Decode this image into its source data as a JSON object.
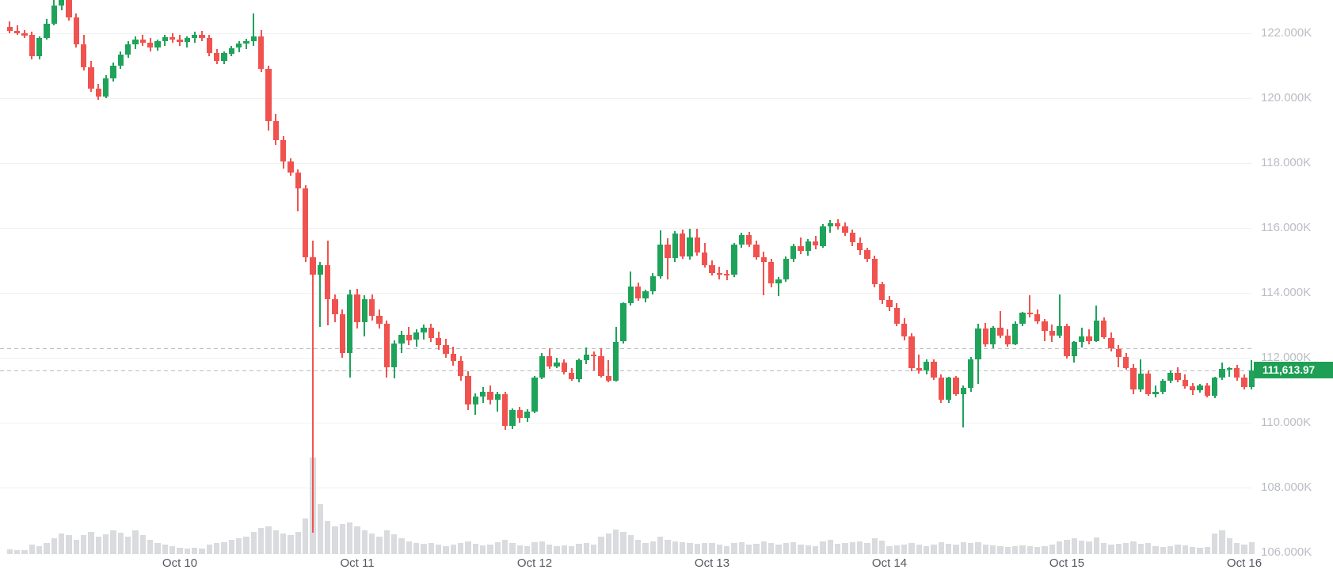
{
  "chart": {
    "price_label": "111,613.97",
    "current_price": 111613.97,
    "colors": {
      "up": "#1fa35b",
      "down": "#f0534f",
      "volume": "#d9dbde",
      "grid": "#f0f1f2",
      "dashed": "#b8bbc2",
      "y_axis_text": "#babdc4",
      "x_axis_text": "#55585f",
      "price_label_bg": "#1f9e55",
      "price_label_text": "#ffffff",
      "background": "#ffffff"
    },
    "y_axis": {
      "tick_labels": [
        "122.000K",
        "120.000K",
        "118.000K",
        "116.000K",
        "114.000K",
        "112.000K",
        "110.000K",
        "108.000K",
        "106.000K"
      ],
      "tick_values": [
        122000,
        120000,
        118000,
        116000,
        114000,
        112000,
        110000,
        108000,
        106000
      ]
    },
    "x_axis": {
      "tick_labels": [
        "Oct 10",
        "Oct 11",
        "Oct 12",
        "Oct 13",
        "Oct 14",
        "Oct 15",
        "Oct 16"
      ]
    },
    "dashed_line_prices": [
      112290,
      111613.97
    ]
  },
  "chart_data": {
    "type": "candlestick_with_volume",
    "unit": "USD thousands",
    "interval": "1 hour",
    "start": "Oct 9 01:00",
    "x_tick_labels": [
      "Oct 10",
      "Oct 11",
      "Oct 12",
      "Oct 13",
      "Oct 14",
      "Oct 15",
      "Oct 16"
    ],
    "y_range_visible": [
      105.5,
      123.0
    ],
    "grid": "horizontal-only",
    "legend": "none",
    "last_price": 111.61397,
    "candles_ohlc": [
      [
        122.2,
        122.36,
        122.0,
        122.08
      ],
      [
        122.08,
        122.25,
        121.95,
        122.0
      ],
      [
        122.0,
        122.1,
        121.85,
        121.92
      ],
      [
        121.95,
        122.05,
        121.2,
        121.3
      ],
      [
        121.3,
        121.9,
        121.2,
        121.85
      ],
      [
        121.85,
        122.45,
        121.8,
        122.3
      ],
      [
        122.3,
        123.05,
        122.25,
        122.85
      ],
      [
        122.85,
        123.4,
        122.7,
        123.25
      ],
      [
        123.25,
        123.45,
        122.4,
        122.5
      ],
      [
        122.5,
        122.6,
        121.55,
        121.65
      ],
      [
        121.65,
        121.95,
        120.85,
        120.95
      ],
      [
        120.95,
        121.15,
        120.2,
        120.3
      ],
      [
        120.3,
        120.45,
        119.95,
        120.05
      ],
      [
        120.05,
        120.7,
        120.0,
        120.6
      ],
      [
        120.6,
        121.1,
        120.5,
        121.0
      ],
      [
        121.0,
        121.45,
        120.9,
        121.35
      ],
      [
        121.35,
        121.75,
        121.25,
        121.65
      ],
      [
        121.65,
        121.9,
        121.5,
        121.8
      ],
      [
        121.8,
        121.95,
        121.6,
        121.7
      ],
      [
        121.7,
        121.85,
        121.45,
        121.55
      ],
      [
        121.55,
        121.8,
        121.45,
        121.75
      ],
      [
        121.75,
        121.95,
        121.6,
        121.88
      ],
      [
        121.88,
        122.0,
        121.7,
        121.8
      ],
      [
        121.8,
        121.95,
        121.6,
        121.72
      ],
      [
        121.72,
        121.9,
        121.55,
        121.85
      ],
      [
        121.85,
        122.05,
        121.7,
        121.95
      ],
      [
        121.95,
        122.08,
        121.75,
        121.85
      ],
      [
        121.85,
        121.95,
        121.3,
        121.4
      ],
      [
        121.4,
        121.52,
        121.05,
        121.15
      ],
      [
        121.15,
        121.45,
        121.05,
        121.38
      ],
      [
        121.38,
        121.62,
        121.28,
        121.55
      ],
      [
        121.55,
        121.75,
        121.42,
        121.68
      ],
      [
        121.68,
        121.82,
        121.52,
        121.75
      ],
      [
        121.75,
        122.6,
        121.6,
        121.9
      ],
      [
        121.9,
        122.1,
        120.8,
        120.9
      ],
      [
        120.9,
        121.0,
        119.0,
        119.3
      ],
      [
        119.3,
        119.52,
        118.55,
        118.7
      ],
      [
        118.7,
        118.82,
        117.82,
        118.05
      ],
      [
        118.05,
        118.15,
        117.6,
        117.72
      ],
      [
        117.72,
        117.8,
        116.5,
        117.22
      ],
      [
        117.22,
        117.32,
        114.95,
        115.1
      ],
      [
        115.1,
        115.62,
        106.6,
        114.55
      ],
      [
        114.55,
        114.95,
        112.95,
        114.85
      ],
      [
        114.85,
        115.62,
        113.0,
        113.8
      ],
      [
        113.8,
        113.95,
        113.1,
        113.35
      ],
      [
        113.35,
        113.5,
        112.0,
        112.15
      ],
      [
        112.15,
        114.1,
        111.4,
        113.95
      ],
      [
        113.95,
        114.12,
        112.9,
        113.1
      ],
      [
        113.1,
        113.92,
        112.65,
        113.8
      ],
      [
        113.8,
        113.95,
        113.15,
        113.3
      ],
      [
        113.3,
        113.48,
        112.9,
        113.05
      ],
      [
        113.05,
        113.15,
        111.4,
        111.7
      ],
      [
        111.7,
        112.55,
        111.38,
        112.45
      ],
      [
        112.45,
        112.82,
        112.15,
        112.72
      ],
      [
        112.72,
        112.95,
        112.4,
        112.55
      ],
      [
        112.55,
        112.88,
        112.35,
        112.78
      ],
      [
        112.78,
        113.02,
        112.55,
        112.92
      ],
      [
        112.92,
        113.05,
        112.5,
        112.62
      ],
      [
        112.62,
        112.8,
        112.25,
        112.4
      ],
      [
        112.4,
        112.58,
        112.0,
        112.12
      ],
      [
        112.12,
        112.35,
        111.75,
        111.9
      ],
      [
        111.9,
        112.05,
        111.3,
        111.45
      ],
      [
        111.45,
        111.58,
        110.4,
        110.55
      ],
      [
        110.55,
        110.9,
        110.25,
        110.8
      ],
      [
        110.8,
        111.1,
        110.6,
        110.95
      ],
      [
        110.95,
        111.15,
        110.55,
        110.7
      ],
      [
        110.7,
        110.95,
        110.35,
        110.88
      ],
      [
        110.88,
        110.95,
        109.78,
        109.9
      ],
      [
        109.9,
        110.45,
        109.8,
        110.38
      ],
      [
        110.38,
        110.5,
        110.0,
        110.15
      ],
      [
        110.15,
        110.42,
        110.02,
        110.35
      ],
      [
        110.35,
        111.45,
        110.3,
        111.4
      ],
      [
        111.4,
        112.15,
        111.35,
        112.06
      ],
      [
        112.06,
        112.3,
        111.65,
        111.72
      ],
      [
        111.72,
        112.0,
        111.68,
        111.85
      ],
      [
        111.85,
        111.95,
        111.48,
        111.55
      ],
      [
        111.55,
        111.68,
        111.28,
        111.35
      ],
      [
        111.35,
        111.98,
        111.25,
        111.92
      ],
      [
        111.92,
        112.32,
        111.8,
        112.1
      ],
      [
        112.1,
        112.2,
        111.6,
        112.05
      ],
      [
        112.05,
        112.3,
        111.38,
        111.45
      ],
      [
        111.45,
        111.92,
        111.25,
        111.3
      ],
      [
        111.3,
        112.95,
        111.28,
        112.5
      ],
      [
        112.5,
        113.72,
        112.45,
        113.68
      ],
      [
        113.68,
        114.65,
        113.6,
        114.2
      ],
      [
        114.2,
        114.32,
        113.75,
        113.82
      ],
      [
        113.82,
        114.1,
        113.7,
        114.05
      ],
      [
        114.05,
        114.6,
        113.95,
        114.52
      ],
      [
        114.52,
        115.92,
        114.45,
        115.5
      ],
      [
        115.5,
        115.68,
        114.42,
        115.08
      ],
      [
        115.08,
        115.9,
        114.95,
        115.82
      ],
      [
        115.82,
        115.95,
        115.05,
        115.12
      ],
      [
        115.12,
        115.98,
        115.02,
        115.7
      ],
      [
        115.7,
        115.98,
        115.15,
        115.25
      ],
      [
        115.25,
        115.55,
        114.78,
        114.85
      ],
      [
        114.85,
        115.0,
        114.55,
        114.62
      ],
      [
        114.62,
        114.8,
        114.42,
        114.58
      ],
      [
        114.58,
        114.72,
        114.38,
        114.55
      ],
      [
        114.55,
        115.55,
        114.48,
        115.48
      ],
      [
        115.48,
        115.85,
        115.4,
        115.78
      ],
      [
        115.78,
        115.88,
        115.42,
        115.5
      ],
      [
        115.5,
        115.6,
        115.02,
        115.1
      ],
      [
        115.1,
        115.28,
        113.92,
        114.95
      ],
      [
        114.95,
        115.05,
        114.18,
        114.3
      ],
      [
        114.3,
        114.48,
        113.9,
        114.42
      ],
      [
        114.42,
        115.12,
        114.35,
        115.05
      ],
      [
        115.05,
        115.52,
        114.95,
        115.45
      ],
      [
        115.45,
        115.72,
        115.2,
        115.3
      ],
      [
        115.3,
        115.65,
        115.15,
        115.58
      ],
      [
        115.58,
        115.75,
        115.35,
        115.45
      ],
      [
        115.45,
        116.12,
        115.4,
        116.05
      ],
      [
        116.05,
        116.25,
        115.85,
        116.15
      ],
      [
        116.15,
        116.28,
        115.95,
        116.05
      ],
      [
        116.05,
        116.18,
        115.75,
        115.85
      ],
      [
        115.85,
        115.95,
        115.45,
        115.55
      ],
      [
        115.55,
        115.7,
        115.18,
        115.32
      ],
      [
        115.32,
        115.4,
        114.95,
        115.05
      ],
      [
        115.05,
        115.15,
        114.18,
        114.28
      ],
      [
        114.28,
        114.35,
        113.65,
        113.78
      ],
      [
        113.78,
        113.9,
        113.45,
        113.55
      ],
      [
        113.55,
        113.68,
        112.98,
        113.05
      ],
      [
        113.05,
        113.22,
        112.55,
        112.65
      ],
      [
        112.65,
        112.75,
        111.58,
        111.68
      ],
      [
        111.68,
        112.1,
        111.52,
        111.62
      ],
      [
        111.62,
        111.95,
        111.5,
        111.88
      ],
      [
        111.88,
        111.95,
        111.32,
        111.4
      ],
      [
        111.4,
        111.48,
        110.62,
        110.7
      ],
      [
        110.7,
        111.42,
        110.6,
        111.38
      ],
      [
        111.38,
        111.45,
        110.82,
        110.88
      ],
      [
        110.88,
        111.15,
        109.85,
        111.08
      ],
      [
        111.08,
        112.02,
        110.95,
        111.95
      ],
      [
        111.95,
        113.05,
        111.2,
        112.9
      ],
      [
        112.9,
        113.08,
        112.35,
        112.42
      ],
      [
        112.42,
        112.98,
        112.3,
        112.92
      ],
      [
        112.92,
        113.45,
        112.6,
        112.68
      ],
      [
        112.68,
        112.88,
        112.35,
        112.42
      ],
      [
        112.42,
        113.12,
        112.38,
        113.05
      ],
      [
        113.05,
        113.42,
        112.98,
        113.38
      ],
      [
        113.38,
        113.92,
        113.25,
        113.35
      ],
      [
        113.35,
        113.48,
        113.05,
        113.12
      ],
      [
        113.12,
        113.2,
        112.52,
        112.82
      ],
      [
        112.82,
        113.02,
        112.48,
        112.68
      ],
      [
        112.68,
        113.95,
        112.62,
        112.98
      ],
      [
        112.98,
        113.05,
        111.98,
        112.05
      ],
      [
        112.05,
        112.52,
        111.85,
        112.48
      ],
      [
        112.48,
        112.92,
        112.32,
        112.65
      ],
      [
        112.65,
        112.88,
        112.42,
        112.52
      ],
      [
        112.52,
        113.62,
        112.48,
        113.15
      ],
      [
        113.15,
        113.25,
        112.58,
        112.62
      ],
      [
        112.62,
        112.78,
        112.2,
        112.28
      ],
      [
        112.28,
        112.4,
        111.7,
        112.02
      ],
      [
        112.02,
        112.15,
        111.62,
        111.68
      ],
      [
        111.68,
        111.8,
        110.88,
        111.02
      ],
      [
        111.02,
        111.95,
        110.95,
        111.52
      ],
      [
        111.52,
        111.6,
        110.82,
        110.88
      ],
      [
        110.88,
        111.15,
        110.78,
        110.95
      ],
      [
        110.95,
        111.35,
        110.88,
        111.3
      ],
      [
        111.3,
        111.6,
        111.22,
        111.55
      ],
      [
        111.55,
        111.72,
        111.25,
        111.32
      ],
      [
        111.32,
        111.48,
        111.05,
        111.12
      ],
      [
        111.12,
        111.22,
        110.85,
        111.0
      ],
      [
        111.0,
        111.2,
        110.92,
        111.15
      ],
      [
        111.15,
        111.22,
        110.78,
        110.82
      ],
      [
        110.82,
        111.42,
        110.75,
        111.38
      ],
      [
        111.38,
        111.85,
        111.32,
        111.65
      ],
      [
        111.65,
        111.72,
        111.42,
        111.68
      ],
      [
        111.68,
        111.78,
        111.3,
        111.38
      ],
      [
        111.38,
        111.48,
        111.02,
        111.1
      ],
      [
        111.1,
        111.92,
        111.02,
        111.61
      ]
    ],
    "volume_relative": [
      6,
      5,
      5,
      12,
      10,
      14,
      20,
      26,
      24,
      18,
      24,
      28,
      22,
      25,
      30,
      27,
      22,
      30,
      24,
      18,
      14,
      12,
      10,
      8,
      7,
      8,
      7,
      12,
      14,
      15,
      18,
      20,
      22,
      28,
      33,
      35,
      30,
      26,
      24,
      28,
      45,
      122,
      63,
      42,
      35,
      38,
      40,
      35,
      30,
      26,
      22,
      30,
      25,
      20,
      16,
      14,
      13,
      14,
      12,
      10,
      12,
      14,
      16,
      13,
      11,
      12,
      15,
      18,
      14,
      11,
      10,
      15,
      16,
      12,
      10,
      11,
      10,
      13,
      14,
      12,
      22,
      26,
      31,
      28,
      24,
      18,
      14,
      16,
      22,
      18,
      16,
      15,
      14,
      13,
      14,
      14,
      12,
      10,
      14,
      15,
      12,
      13,
      16,
      14,
      12,
      14,
      15,
      12,
      11,
      10,
      16,
      18,
      13,
      14,
      15,
      16,
      14,
      20,
      17,
      10,
      11,
      12,
      14,
      12,
      10,
      12,
      15,
      13,
      12,
      15,
      14,
      15,
      12,
      11,
      10,
      9,
      10,
      11,
      10,
      9,
      10,
      12,
      16,
      18,
      20,
      17,
      16,
      21,
      14,
      12,
      13,
      14,
      16,
      13,
      14,
      10,
      9,
      10,
      12,
      11,
      9,
      8,
      9,
      26,
      30,
      20,
      14,
      12,
      15
    ]
  }
}
